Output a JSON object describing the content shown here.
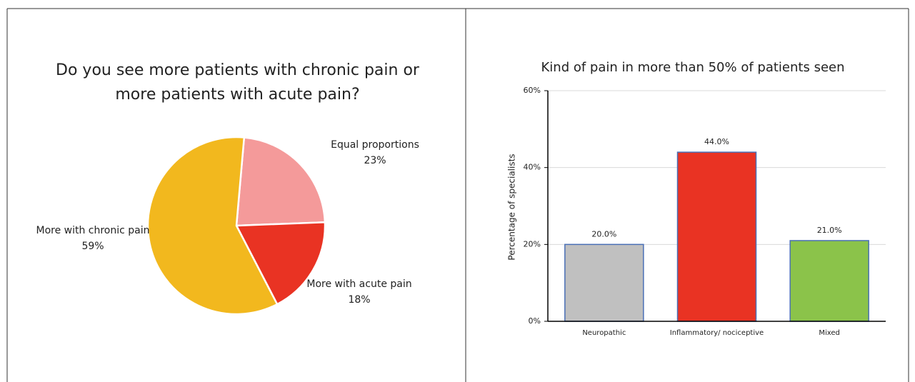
{
  "chart_data": [
    {
      "type": "pie",
      "title": "Do you see more patients with chronic pain or more patients with acute pain?",
      "categories": [
        "Equal proportions",
        "More with acute pain",
        "More with chronic pain"
      ],
      "values": [
        23,
        18,
        59
      ],
      "value_labels": [
        "23%",
        "18%",
        "59%"
      ],
      "colors": [
        "#f49a9a",
        "#e93323",
        "#f2b81e"
      ]
    },
    {
      "type": "bar",
      "title": "Kind of pain in more than 50% of patients seen",
      "y_label": "Percentage of specialists",
      "categories": [
        "Neuropathic",
        "Inflammatory/ nociceptive",
        "Mixed"
      ],
      "values": [
        20,
        44,
        21
      ],
      "value_labels": [
        "20.0%",
        "44.0%",
        "21.0%"
      ],
      "colors": [
        "#c0c0c0",
        "#e93323",
        "#8bc34a"
      ],
      "ylim": [
        0,
        60
      ],
      "yticks": [
        {
          "value": 0,
          "label": "0%"
        },
        {
          "value": 20,
          "label": "20%"
        },
        {
          "value": 40,
          "label": "40%"
        },
        {
          "value": 60,
          "label": "60%"
        }
      ],
      "grid": true
    }
  ]
}
